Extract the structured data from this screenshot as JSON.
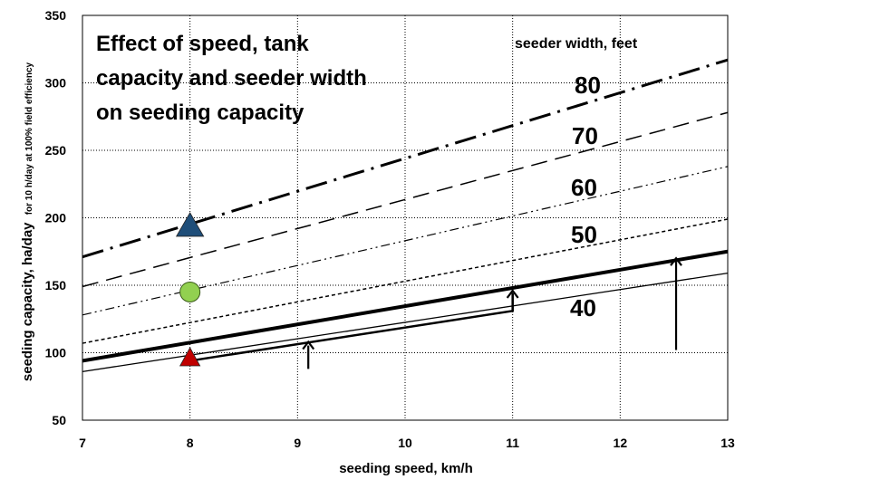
{
  "chart_data": {
    "type": "line",
    "title_lines": [
      "Effect of speed, tank",
      "capacity and seeder width",
      "on seeding capacity"
    ],
    "xlabel": "seeding speed, km/h",
    "ylabel_main": "seeding capacity, ha/day",
    "ylabel_sub": "for 10 h/day at 100% field efficiency",
    "xlim": [
      7,
      13
    ],
    "ylim": [
      50,
      350
    ],
    "xticks": [
      7,
      8,
      9,
      10,
      11,
      12,
      13
    ],
    "yticks": [
      50,
      100,
      150,
      200,
      250,
      300,
      350
    ],
    "grid": true,
    "legend_title": "seeder width, feet",
    "series": [
      {
        "name": "80",
        "x": [
          7,
          13
        ],
        "y": [
          171,
          317
        ],
        "style": "dashdot",
        "width": 3
      },
      {
        "name": "70",
        "x": [
          7,
          13
        ],
        "y": [
          149,
          278
        ],
        "style": "dashed",
        "width": 1.5
      },
      {
        "name": "60",
        "x": [
          7,
          13
        ],
        "y": [
          128,
          238
        ],
        "style": "dashdotdot",
        "width": 1.2
      },
      {
        "name": "50",
        "x": [
          7,
          13
        ],
        "y": [
          107,
          199
        ],
        "style": "dotted",
        "width": 1.5
      },
      {
        "name": "",
        "x": [
          7,
          13
        ],
        "y": [
          94,
          175
        ],
        "style": "solid",
        "width": 4
      },
      {
        "name": "40",
        "x": [
          7,
          13
        ],
        "y": [
          86,
          159
        ],
        "style": "solid",
        "width": 1.3
      }
    ],
    "path_line": {
      "x": [
        8,
        11,
        11
      ],
      "y": [
        94,
        131,
        144
      ]
    },
    "arrows": [
      {
        "x": 9.1,
        "from": 88,
        "to": 108
      },
      {
        "x": 11,
        "from": 131,
        "to": 146
      },
      {
        "x": 12.52,
        "from": 102,
        "to": 170
      }
    ],
    "markers": [
      {
        "x": 8,
        "y": 195,
        "shape": "triangle",
        "color": "#1f4e79"
      },
      {
        "x": 8,
        "y": 145,
        "shape": "circle",
        "color": "#92d050"
      },
      {
        "x": 8,
        "y": 97,
        "shape": "triangle",
        "color": "#c00000"
      }
    ]
  }
}
